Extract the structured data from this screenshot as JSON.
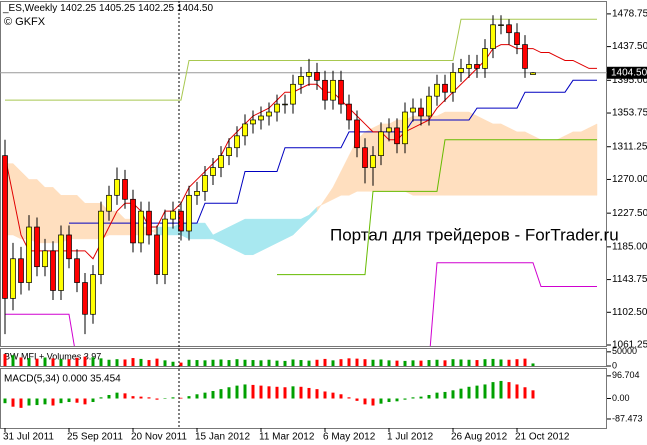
{
  "header": {
    "symbol": "_ES,Weekly",
    "ohlc": [
      "1402.25",
      "1405.25",
      "1402.25",
      "1404.50"
    ],
    "broker": "© GKFX"
  },
  "watermark": "Портал для трейдеров - ForTrader.ru",
  "chart_data": {
    "type": "candlestick",
    "categories": [
      "31 Jul 2011",
      null,
      null,
      null,
      null,
      null,
      null,
      null,
      "25 Sep 2011",
      null,
      null,
      null,
      null,
      null,
      null,
      null,
      "20 Nov 2011",
      null,
      null,
      null,
      null,
      null,
      null,
      null,
      "15 Jan 2012",
      null,
      null,
      null,
      null,
      null,
      null,
      null,
      "11 Mar 2012",
      null,
      null,
      null,
      null,
      null,
      null,
      null,
      "6 May 2012",
      null,
      null,
      null,
      null,
      null,
      null,
      null,
      "1 Jul 2012",
      null,
      null,
      null,
      null,
      null,
      null,
      null,
      "26 Aug 2012",
      null,
      null,
      null,
      null,
      null,
      null,
      null,
      "21 Oct 2012",
      null,
      null,
      null,
      null,
      null,
      null,
      null,
      null,
      null,
      null
    ],
    "open": [
      1300,
      1120,
      1170,
      1140,
      1210,
      1160,
      1180,
      1130,
      1200,
      1170,
      1140,
      1100,
      1150,
      1230,
      1250,
      1270,
      1245,
      1190,
      1230,
      1200,
      1150,
      1220,
      1230,
      1205,
      1250,
      1255,
      1275,
      1285,
      1300,
      1310,
      1325,
      1340,
      1345,
      1350,
      1355,
      1365,
      1365,
      1390,
      1400,
      1405,
      1395,
      1370,
      1395,
      1365,
      1345,
      1310,
      1285,
      1300,
      1330,
      1335,
      1315,
      1355,
      1360,
      1350,
      1375,
      1390,
      1380,
      1405,
      1410,
      1415,
      1410,
      1435,
      1465,
      1465,
      1455,
      1440,
      1402.25,
      null,
      null,
      null,
      null,
      null,
      null,
      null,
      null
    ],
    "high": [
      1320,
      1190,
      1185,
      1225,
      1222,
      1195,
      1192,
      1212,
      1212,
      1182,
      1152,
      1162,
      1242,
      1262,
      1285,
      1282,
      1257,
      1242,
      1242,
      1212,
      1232,
      1242,
      1242,
      1262,
      1267,
      1287,
      1297,
      1312,
      1322,
      1337,
      1352,
      1357,
      1362,
      1367,
      1377,
      1377,
      1402,
      1412,
      1422,
      1417,
      1407,
      1407,
      1407,
      1377,
      1357,
      1322,
      1312,
      1342,
      1347,
      1347,
      1367,
      1372,
      1372,
      1387,
      1402,
      1402,
      1417,
      1422,
      1427,
      1427,
      1447,
      1477,
      1477,
      1472,
      1467,
      1452,
      1405.25,
      null,
      null,
      null,
      null,
      null,
      null,
      null,
      null
    ],
    "low": [
      1075,
      1105,
      1125,
      1130,
      1148,
      1148,
      1118,
      1118,
      1158,
      1128,
      1075,
      1088,
      1138,
      1218,
      1238,
      1233,
      1178,
      1178,
      1188,
      1138,
      1138,
      1208,
      1193,
      1193,
      1238,
      1243,
      1263,
      1273,
      1288,
      1298,
      1313,
      1328,
      1333,
      1338,
      1343,
      1353,
      1353,
      1378,
      1388,
      1383,
      1358,
      1358,
      1353,
      1333,
      1298,
      1265,
      1262,
      1288,
      1318,
      1303,
      1303,
      1343,
      1338,
      1338,
      1363,
      1368,
      1368,
      1393,
      1398,
      1398,
      1398,
      1423,
      1453,
      1440,
      1428,
      1398,
      1402.25,
      null,
      null,
      null,
      null,
      null,
      null,
      null,
      null
    ],
    "close": [
      1120,
      1170,
      1140,
      1210,
      1160,
      1180,
      1130,
      1200,
      1170,
      1140,
      1100,
      1150,
      1230,
      1250,
      1270,
      1245,
      1190,
      1230,
      1200,
      1150,
      1220,
      1230,
      1205,
      1250,
      1255,
      1275,
      1285,
      1300,
      1310,
      1325,
      1340,
      1345,
      1350,
      1355,
      1365,
      1365,
      1390,
      1400,
      1405,
      1395,
      1370,
      1395,
      1365,
      1345,
      1310,
      1285,
      1300,
      1330,
      1335,
      1315,
      1355,
      1360,
      1350,
      1375,
      1390,
      1380,
      1405,
      1410,
      1415,
      1410,
      1435,
      1465,
      1465,
      1455,
      1440,
      1410,
      1404.5,
      null,
      null,
      null,
      null,
      null,
      null,
      null,
      null
    ],
    "up_color": "#ffff00",
    "down_color": "#ff0000",
    "ylim": [
      1060,
      1495
    ],
    "yticks": [
      1478.75,
      {
        "value": 1437.5,
        "label": "1437.50"
      },
      {
        "value": 1395,
        "label": "1395.00"
      },
      1353.75,
      1311.25,
      {
        "value": 1270,
        "label": "1270.00"
      },
      {
        "value": 1227.5,
        "label": "1227.50"
      },
      {
        "value": 1185,
        "label": "1185.00"
      },
      1143.75,
      {
        "value": 1102.5,
        "label": "1102.50"
      },
      1061.25
    ],
    "price_line": {
      "value": 1404.5,
      "label": "1404.50"
    },
    "cloud": {
      "color": "#ffdfbf",
      "twist_color": "#a8e8f0",
      "span_a": [
        1290,
        1290,
        1280,
        1270,
        1270,
        1260,
        1260,
        1250,
        1250,
        1250,
        1240,
        1240,
        1240,
        1230,
        1230,
        1220,
        1220,
        1210,
        1210,
        1200,
        1200,
        1200,
        1200,
        1195,
        1195,
        1195,
        1195,
        1190,
        1185,
        1180,
        1175,
        1175,
        1180,
        1185,
        1190,
        1195,
        1200,
        1210,
        1220,
        1230,
        1245,
        1260,
        1280,
        1300,
        1320,
        1330,
        1335,
        1340,
        1340,
        1345,
        1345,
        1350,
        1350,
        1350,
        1350,
        1355,
        1355,
        1355,
        1355,
        1350,
        1345,
        1340,
        1340,
        1335,
        1330,
        1330,
        1325,
        1320,
        1320,
        1320,
        1325,
        1330,
        1330,
        1335,
        1340
      ],
      "span_b": [
        1200,
        1200,
        1195,
        1195,
        1190,
        1190,
        1190,
        1190,
        1195,
        1195,
        1195,
        1195,
        1195,
        1200,
        1200,
        1200,
        1200,
        1200,
        1200,
        1210,
        1210,
        1210,
        1215,
        1215,
        1215,
        1215,
        1200,
        1205,
        1210,
        1215,
        1220,
        1220,
        1220,
        1220,
        1220,
        1220,
        1220,
        1220,
        1225,
        1235,
        1240,
        1245,
        1250,
        1250,
        1255,
        1255,
        1255,
        1255,
        1255,
        1255,
        1255,
        1250,
        1250,
        1250,
        1250,
        1250,
        1250,
        1250,
        1250,
        1250,
        1250,
        1250,
        1250,
        1250,
        1250,
        1250,
        1250,
        1250,
        1250,
        1250,
        1250,
        1250,
        1250,
        1250,
        1250
      ]
    },
    "overlays": [
      {
        "color": "#a8c850",
        "values": [
          1370,
          1370,
          1370,
          1370,
          1370,
          1370,
          1370,
          1370,
          1370,
          1370,
          1370,
          1370,
          1370,
          1370,
          1370,
          1370,
          1370,
          1370,
          1370,
          1370,
          1370,
          1370,
          1370,
          1420,
          1420,
          1420,
          1420,
          1420,
          1420,
          1420,
          1420,
          1420,
          1420,
          1420,
          1420,
          1420,
          1420,
          1420,
          1420,
          1420,
          1420,
          1420,
          1420,
          1420,
          1420,
          1420,
          1420,
          1420,
          1420,
          1420,
          1420,
          1420,
          1420,
          1420,
          1420,
          1420,
          1420,
          1472,
          1472,
          1472,
          1472,
          1472,
          1472,
          1472,
          1472,
          1472,
          1472,
          1472,
          1472,
          1472,
          1472,
          1472,
          1472,
          1472,
          1472
        ]
      },
      {
        "color": "#66bb00",
        "values": [
          null,
          null,
          null,
          null,
          null,
          null,
          null,
          null,
          null,
          null,
          null,
          null,
          null,
          null,
          null,
          null,
          null,
          null,
          null,
          null,
          null,
          null,
          null,
          null,
          null,
          null,
          null,
          null,
          null,
          null,
          null,
          null,
          null,
          null,
          1150,
          1150,
          1150,
          1150,
          1150,
          1150,
          1150,
          1150,
          1150,
          1150,
          1150,
          1150,
          1255,
          1255,
          1255,
          1255,
          1255,
          1255,
          1255,
          1255,
          1255,
          1320,
          1320,
          1320,
          1320,
          1320,
          1320,
          1320,
          1320,
          1320,
          1320,
          1320,
          1320,
          1320,
          1320,
          1320,
          1320,
          1320,
          1320,
          1320,
          1320
        ]
      },
      {
        "color": "#d000d0",
        "values": [
          1100,
          1100,
          1100,
          1100,
          1100,
          1100,
          1100,
          1100,
          1100,
          1040,
          1040,
          1040,
          1040,
          1040,
          1040,
          1040,
          1040,
          1040,
          1040,
          1040,
          1040,
          1040,
          1040,
          1040,
          1040,
          1040,
          1040,
          1040,
          1040,
          1040,
          1040,
          1040,
          1040,
          1040,
          1040,
          1040,
          1040,
          1040,
          1040,
          1040,
          1040,
          1040,
          1040,
          1040,
          1040,
          1040,
          1040,
          1040,
          1040,
          1040,
          1040,
          1040,
          1040,
          1040,
          1165,
          1165,
          1165,
          1165,
          1165,
          1165,
          1165,
          1165,
          1165,
          1165,
          1165,
          1165,
          1165,
          1135,
          1135,
          1135,
          1135,
          1135,
          1135,
          1135,
          1135
        ]
      },
      {
        "color": "#0000c0",
        "values": [
          null,
          null,
          null,
          null,
          null,
          null,
          null,
          null,
          1215,
          1215,
          1215,
          1215,
          1215,
          1215,
          1215,
          1215,
          1215,
          1215,
          1215,
          1215,
          1215,
          1215,
          1215,
          1215,
          1215,
          1240,
          1240,
          1240,
          1240,
          1240,
          1280,
          1280,
          1280,
          1280,
          1280,
          1310,
          1310,
          1310,
          1310,
          1310,
          1310,
          1310,
          1310,
          1330,
          1330,
          1330,
          1330,
          1330,
          1330,
          1330,
          1330,
          1345,
          1345,
          1345,
          1345,
          1345,
          1345,
          1345,
          1345,
          1360,
          1360,
          1360,
          1360,
          1360,
          1360,
          1380,
          1380,
          1380,
          1380,
          1380,
          1380,
          1395,
          1395,
          1395,
          1395
        ]
      },
      {
        "color": "#e00000",
        "values": [
          1300,
          1250,
          1200,
          1180,
          1180,
          1180,
          1180,
          1180,
          1180,
          1180,
          1180,
          1170,
          1190,
          1210,
          1230,
          1240,
          1240,
          1230,
          1210,
          1210,
          1230,
          1230,
          1240,
          1260,
          1270,
          1280,
          1290,
          1300,
          1320,
          1330,
          1340,
          1350,
          1355,
          1360,
          1370,
          1380,
          1380,
          1385,
          1390,
          1390,
          1380,
          1380,
          1370,
          1360,
          1350,
          1340,
          1330,
          1330,
          1320,
          1320,
          1330,
          1335,
          1340,
          1345,
          1360,
          1370,
          1380,
          1390,
          1400,
          1410,
          1420,
          1435,
          1440,
          1440,
          1435,
          1435,
          1435,
          1430,
          1430,
          1425,
          1420,
          1420,
          1415,
          1410,
          1410
        ]
      }
    ],
    "mfi": {
      "title": "BW MFI + Volumes 3.97",
      "ylim": [
        0,
        60000
      ],
      "yticks": [
        50000,
        0
      ],
      "up_color": "#00a000",
      "down_color": "#ff0000",
      "values": [
        42000,
        38000,
        30000,
        28000,
        26000,
        30000,
        27000,
        25000,
        24000,
        29000,
        33000,
        31000,
        27000,
        22000,
        24000,
        23000,
        28000,
        25000,
        21000,
        26000,
        20000,
        15000,
        12000,
        22000,
        21000,
        20000,
        22000,
        23000,
        21000,
        24000,
        22000,
        21000,
        20000,
        22000,
        19000,
        18000,
        23000,
        21000,
        19000,
        22000,
        25000,
        20000,
        24000,
        27000,
        26000,
        24000,
        22000,
        23000,
        20000,
        19000,
        18000,
        20000,
        19000,
        21000,
        22000,
        20000,
        24000,
        23000,
        22000,
        21000,
        24000,
        25000,
        23000,
        22000,
        24000,
        26000,
        9000,
        null,
        null,
        null,
        null,
        null,
        null,
        null,
        null
      ]
    },
    "macd": {
      "title": "MACD(5,34) 0.000 35.454",
      "ylim": [
        -126,
        126
      ],
      "yticks": [
        96.704,
        {
          "value": 0,
          "label": "0.00"
        },
        -87.473
      ],
      "up_color": "#00a000",
      "down_color": "#ff0000",
      "values": [
        -20,
        -35,
        -40,
        -30,
        -28,
        -25,
        -30,
        -20,
        -15,
        -18,
        -25,
        -15,
        5,
        15,
        25,
        22,
        10,
        8,
        5,
        -5,
        0,
        5,
        3,
        10,
        18,
        25,
        32,
        40,
        48,
        55,
        60,
        58,
        55,
        52,
        50,
        48,
        52,
        50,
        45,
        40,
        30,
        25,
        18,
        5,
        -10,
        -25,
        -30,
        -22,
        -15,
        -12,
        -5,
        5,
        8,
        15,
        25,
        28,
        35,
        42,
        50,
        55,
        60,
        70,
        75,
        70,
        60,
        48,
        35,
        null,
        null,
        null,
        null,
        null,
        null,
        null,
        null
      ]
    }
  }
}
